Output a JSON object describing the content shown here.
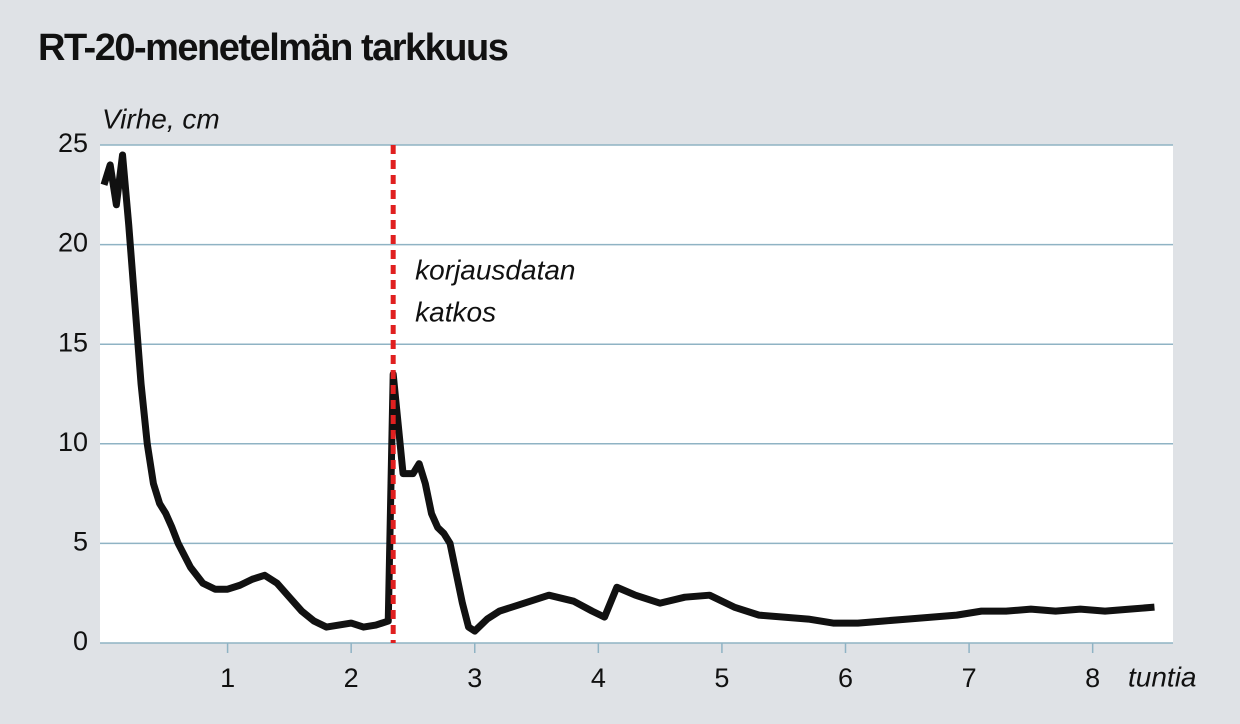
{
  "chart_data": {
    "type": "line",
    "title": "RT-20-menetelmän tarkkuus",
    "y_label": "Virhe, cm",
    "x_label": "tuntia",
    "x": [
      0,
      0.05,
      0.1,
      0.15,
      0.2,
      0.25,
      0.3,
      0.35,
      0.4,
      0.45,
      0.5,
      0.55,
      0.6,
      0.7,
      0.8,
      0.9,
      1.0,
      1.1,
      1.2,
      1.3,
      1.4,
      1.5,
      1.6,
      1.7,
      1.8,
      1.9,
      2.0,
      2.1,
      2.2,
      2.3,
      2.34,
      2.38,
      2.42,
      2.5,
      2.55,
      2.6,
      2.65,
      2.7,
      2.75,
      2.8,
      2.85,
      2.9,
      2.95,
      3.0,
      3.1,
      3.2,
      3.4,
      3.6,
      3.8,
      3.95,
      4.05,
      4.15,
      4.3,
      4.5,
      4.7,
      4.9,
      5.1,
      5.3,
      5.5,
      5.7,
      5.9,
      6.1,
      6.3,
      6.5,
      6.7,
      6.9,
      7.1,
      7.3,
      7.5,
      7.7,
      7.9,
      8.1,
      8.3,
      8.5
    ],
    "series": [
      {
        "color": "#111111",
        "values": [
          23,
          24,
          22,
          24.5,
          21,
          17,
          13,
          10,
          8,
          7,
          6.5,
          5.8,
          5,
          3.8,
          3,
          2.7,
          2.7,
          2.9,
          3.2,
          3.4,
          3.0,
          2.3,
          1.6,
          1.1,
          0.8,
          0.9,
          1.0,
          0.8,
          0.9,
          1.1,
          13.5,
          11,
          8.5,
          8.5,
          9,
          8,
          6.5,
          5.8,
          5.5,
          5,
          3.5,
          2,
          0.8,
          0.6,
          1.2,
          1.6,
          2.0,
          2.4,
          2.1,
          1.6,
          1.3,
          2.8,
          2.4,
          2.0,
          2.3,
          2.4,
          1.8,
          1.4,
          1.3,
          1.2,
          1.0,
          1.0,
          1.1,
          1.2,
          1.3,
          1.4,
          1.6,
          1.6,
          1.7,
          1.6,
          1.7,
          1.6,
          1.7,
          1.8
        ]
      }
    ],
    "annotations": [
      {
        "x": 2.34,
        "color": "#e02020",
        "lines": [
          "korjausdatan",
          "katkos"
        ]
      }
    ],
    "xlim": [
      0,
      8.65
    ],
    "xticks": [
      1,
      2,
      3,
      4,
      5,
      6,
      7,
      8
    ],
    "ylim": [
      0,
      25
    ],
    "yticks": [
      0,
      5,
      10,
      15,
      20,
      25
    ],
    "grid": true
  }
}
